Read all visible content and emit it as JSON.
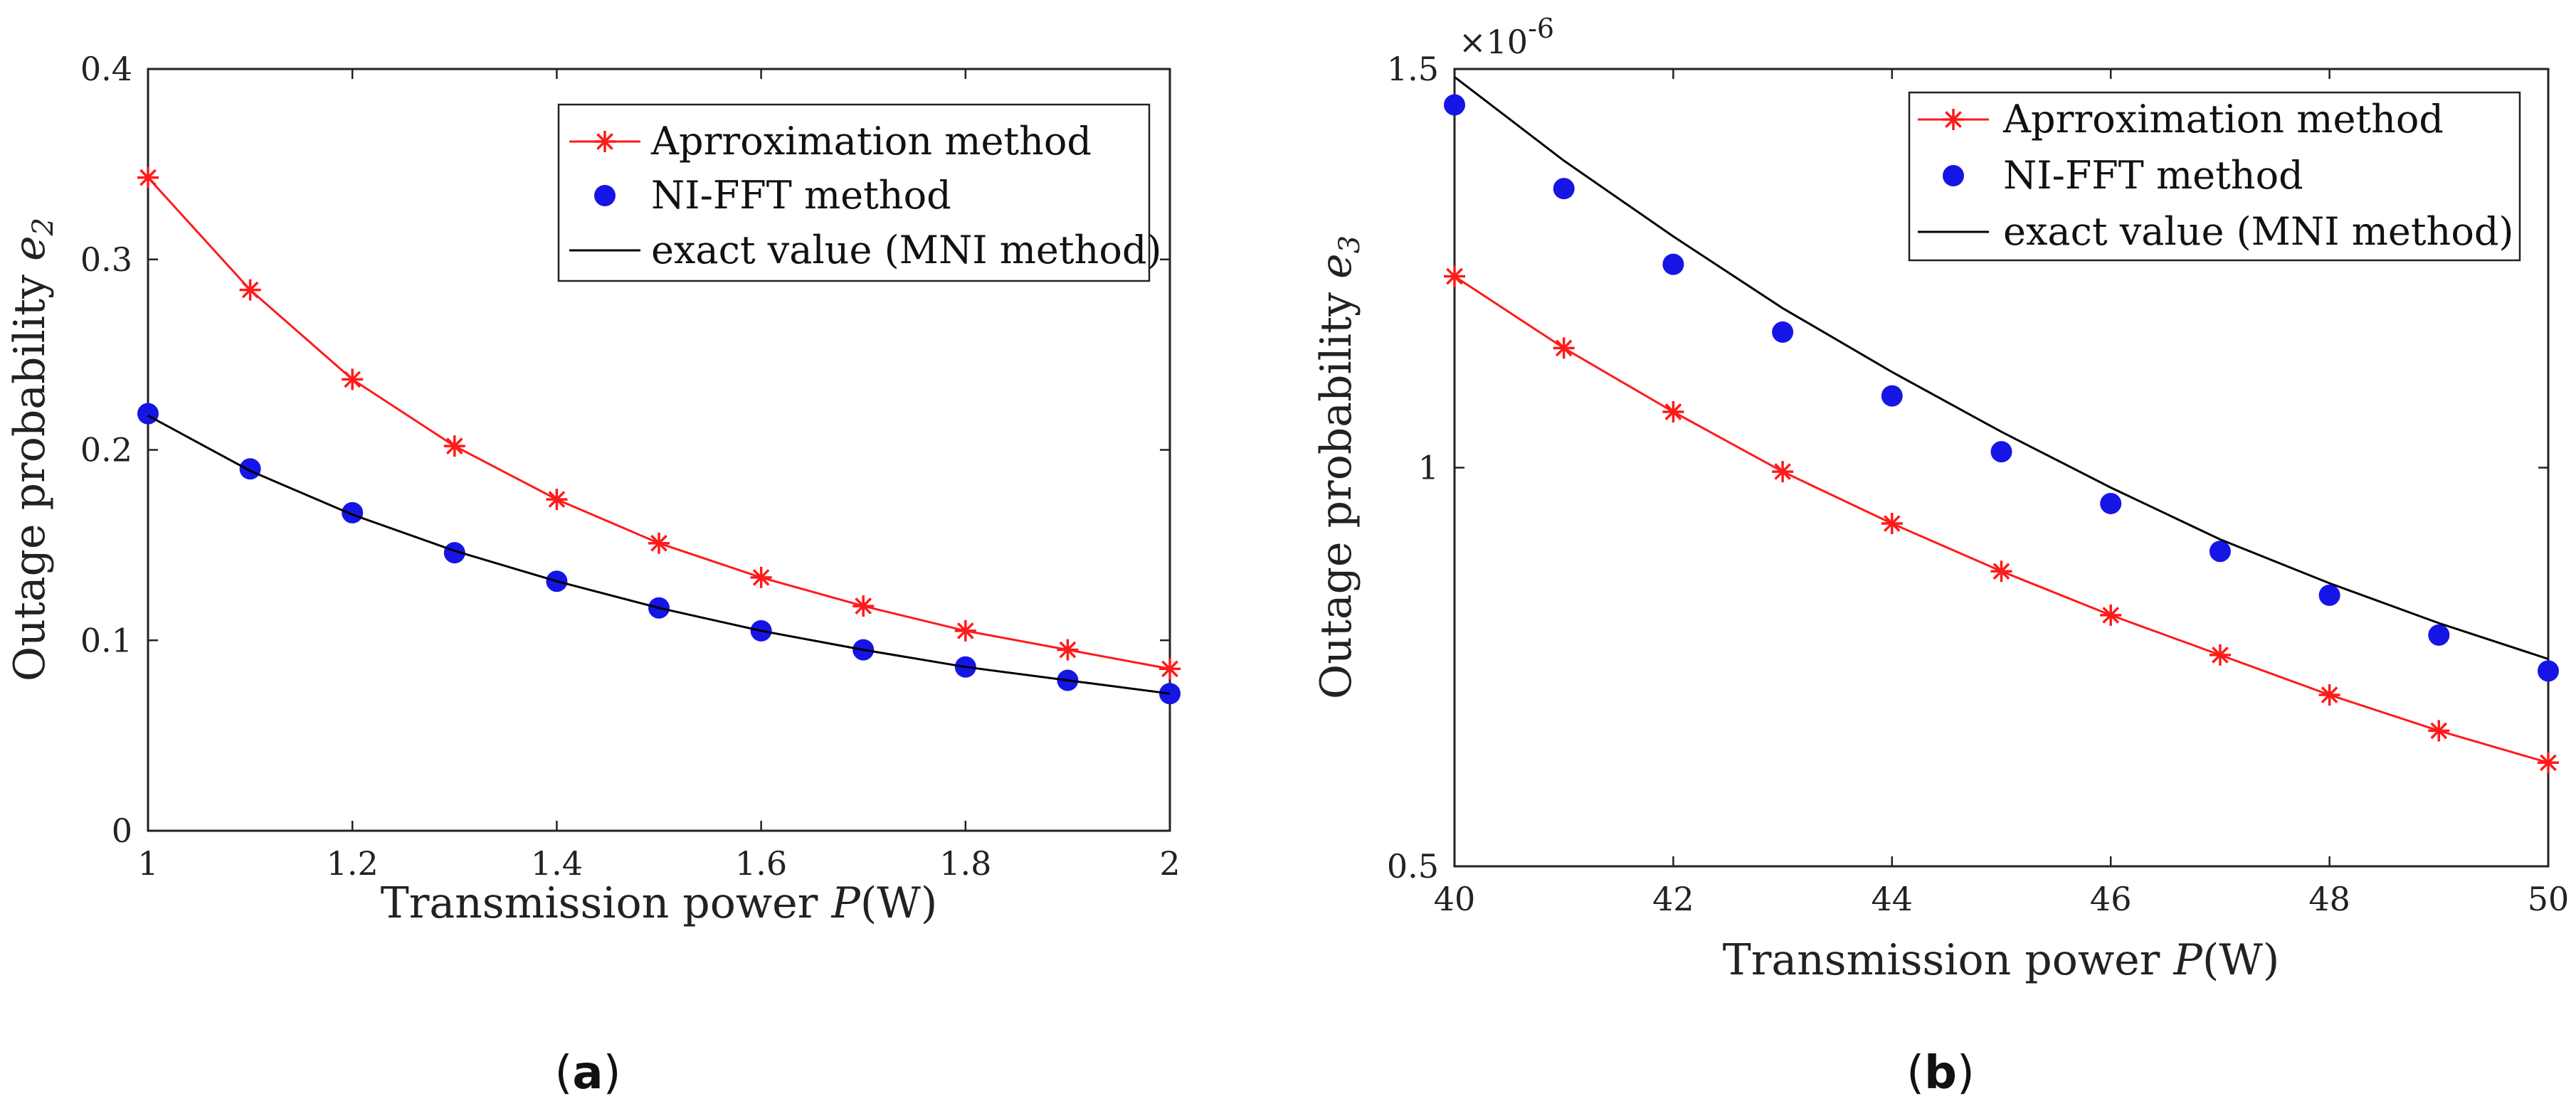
{
  "chart_data": [
    {
      "type": "line",
      "panel": "a",
      "caption_open": "(",
      "caption_letter": "a",
      "caption_close": ")",
      "xlabel_text": "Transmission power ",
      "xlabel_var": "P",
      "xlabel_unit": "(W)",
      "ylabel_text": "Outage probability ",
      "ylabel_var": "e",
      "ylabel_sub": "2",
      "xlim": [
        1,
        2
      ],
      "ylim": [
        0,
        0.4
      ],
      "xticks": [
        1,
        1.2,
        1.4,
        1.6,
        1.8,
        2
      ],
      "xtick_labels": [
        "1",
        "1.2",
        "1.4",
        "1.6",
        "1.8",
        "2"
      ],
      "yticks": [
        0,
        0.1,
        0.2,
        0.3,
        0.4
      ],
      "ytick_labels": [
        "0",
        "0.1",
        "0.2",
        "0.3",
        "0.4"
      ],
      "exponent_label": "",
      "legend": [
        "Aprroximation method",
        "NI-FFT method",
        "exact value (MNI method)"
      ],
      "x": [
        1.0,
        1.1,
        1.2,
        1.3,
        1.4,
        1.5,
        1.6,
        1.7,
        1.8,
        1.9,
        2.0
      ],
      "series": [
        {
          "name": "Aprroximation method",
          "style": "red-star-line",
          "color": "#ff1a1a",
          "values": [
            0.343,
            0.284,
            0.237,
            0.202,
            0.174,
            0.151,
            0.133,
            0.118,
            0.105,
            0.095,
            0.085
          ]
        },
        {
          "name": "NI-FFT method",
          "style": "blue-dot",
          "color": "#1515e6",
          "values": [
            0.219,
            0.19,
            0.167,
            0.146,
            0.131,
            0.117,
            0.105,
            0.095,
            0.086,
            0.079,
            0.072
          ]
        },
        {
          "name": "exact value (MNI method)",
          "style": "black-line",
          "color": "#000000",
          "values": [
            0.218,
            0.189,
            0.166,
            0.147,
            0.131,
            0.117,
            0.105,
            0.095,
            0.086,
            0.079,
            0.072
          ]
        }
      ]
    },
    {
      "type": "line",
      "panel": "b",
      "caption_open": "(",
      "caption_letter": "b",
      "caption_close": ")",
      "xlabel_text": "Transmission power ",
      "xlabel_var": "P",
      "xlabel_unit": "(W)",
      "ylabel_text": "Outage probability ",
      "ylabel_var": "e",
      "ylabel_sub": "3",
      "xlim": [
        40,
        50
      ],
      "ylim": [
        0.5,
        1.5
      ],
      "xticks": [
        40,
        42,
        44,
        46,
        48,
        50
      ],
      "xtick_labels": [
        "40",
        "42",
        "44",
        "46",
        "48",
        "50"
      ],
      "yticks": [
        0.5,
        1.0,
        1.5
      ],
      "ytick_labels": [
        "0.5",
        "1",
        "1.5"
      ],
      "exponent_base": "×10",
      "exponent_power": "-6",
      "legend": [
        "Aprroximation method",
        "NI-FFT method",
        "exact value (MNI method)"
      ],
      "x": [
        40,
        41,
        42,
        43,
        44,
        45,
        46,
        47,
        48,
        49,
        50
      ],
      "series": [
        {
          "name": "Aprroximation method",
          "style": "red-star-line",
          "color": "#ff1a1a",
          "values": [
            1.24,
            1.15,
            1.07,
            0.995,
            0.93,
            0.87,
            0.815,
            0.765,
            0.715,
            0.67,
            0.63
          ]
        },
        {
          "name": "NI-FFT method",
          "style": "blue-dot",
          "color": "#1515e6",
          "values": [
            1.455,
            1.35,
            1.255,
            1.17,
            1.09,
            1.02,
            0.955,
            0.895,
            0.84,
            0.79,
            0.745
          ]
        },
        {
          "name": "exact value (MNI method)",
          "style": "black-line",
          "color": "#000000",
          "values": [
            1.49,
            1.385,
            1.29,
            1.2,
            1.12,
            1.045,
            0.975,
            0.91,
            0.855,
            0.805,
            0.76
          ]
        }
      ]
    }
  ]
}
